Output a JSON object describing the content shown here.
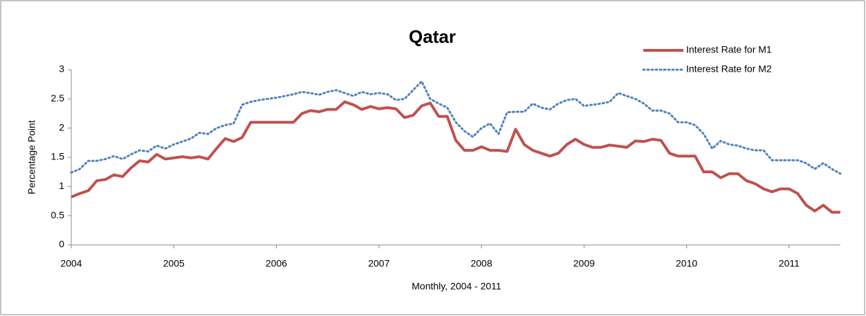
{
  "chart_data": {
    "type": "line",
    "title": "Qatar",
    "x_label": "Monthly, 2004 - 2011",
    "y_label": "Percentage Point",
    "categories": [
      "2004",
      null,
      null,
      null,
      null,
      null,
      null,
      null,
      null,
      null,
      null,
      null,
      "2005",
      null,
      null,
      null,
      null,
      null,
      null,
      null,
      null,
      null,
      null,
      null,
      "2006",
      null,
      null,
      null,
      null,
      null,
      null,
      null,
      null,
      null,
      null,
      null,
      "2007",
      null,
      null,
      null,
      null,
      null,
      null,
      null,
      null,
      null,
      null,
      null,
      "2008",
      null,
      null,
      null,
      null,
      null,
      null,
      null,
      null,
      null,
      null,
      null,
      "2009",
      null,
      null,
      null,
      null,
      null,
      null,
      null,
      null,
      null,
      null,
      null,
      "2010",
      null,
      null,
      null,
      null,
      null,
      null,
      null,
      null,
      null,
      null,
      null,
      "2011",
      null,
      null,
      null,
      null,
      null,
      null
    ],
    "series": [
      {
        "name": "Interest Rate for M1",
        "color": "#c0504d",
        "style": "solid",
        "values": [
          0.82,
          0.88,
          0.93,
          1.1,
          1.12,
          1.2,
          1.17,
          1.32,
          1.44,
          1.42,
          1.55,
          1.47,
          1.49,
          1.51,
          1.49,
          1.51,
          1.47,
          1.65,
          1.82,
          1.77,
          1.84,
          2.1,
          2.1,
          2.1,
          2.1,
          2.1,
          2.1,
          2.25,
          2.3,
          2.28,
          2.32,
          2.32,
          2.45,
          2.4,
          2.32,
          2.37,
          2.33,
          2.35,
          2.33,
          2.18,
          2.22,
          2.38,
          2.43,
          2.2,
          2.2,
          1.79,
          1.62,
          1.62,
          1.68,
          1.62,
          1.62,
          1.6,
          1.98,
          1.72,
          1.62,
          1.57,
          1.52,
          1.57,
          1.72,
          1.81,
          1.72,
          1.67,
          1.67,
          1.71,
          1.69,
          1.67,
          1.78,
          1.77,
          1.81,
          1.79,
          1.57,
          1.52,
          1.52,
          1.52,
          1.25,
          1.25,
          1.15,
          1.22,
          1.22,
          1.1,
          1.05,
          0.96,
          0.91,
          0.96,
          0.96,
          0.88,
          0.68,
          0.58,
          0.68,
          0.56,
          0.56
        ]
      },
      {
        "name": "Interest Rate for M2",
        "color": "#4f81bd",
        "style": "dotted",
        "values": [
          1.24,
          1.3,
          1.44,
          1.44,
          1.47,
          1.52,
          1.47,
          1.55,
          1.62,
          1.6,
          1.7,
          1.65,
          1.72,
          1.77,
          1.82,
          1.92,
          1.9,
          2.0,
          2.05,
          2.08,
          2.4,
          2.45,
          2.48,
          2.5,
          2.52,
          2.55,
          2.58,
          2.62,
          2.6,
          2.57,
          2.62,
          2.65,
          2.6,
          2.55,
          2.62,
          2.58,
          2.6,
          2.58,
          2.48,
          2.5,
          2.65,
          2.8,
          2.5,
          2.42,
          2.35,
          2.1,
          1.95,
          1.85,
          2.0,
          2.08,
          1.9,
          2.27,
          2.28,
          2.28,
          2.42,
          2.35,
          2.32,
          2.42,
          2.48,
          2.5,
          2.38,
          2.4,
          2.42,
          2.45,
          2.6,
          2.55,
          2.5,
          2.42,
          2.3,
          2.3,
          2.25,
          2.1,
          2.1,
          2.05,
          1.9,
          1.65,
          1.78,
          1.72,
          1.7,
          1.65,
          1.62,
          1.62,
          1.45,
          1.45,
          1.45,
          1.45,
          1.4,
          1.3,
          1.4,
          1.3,
          1.22
        ]
      }
    ],
    "ylim": [
      0,
      3
    ],
    "yticks": [
      0,
      0.5,
      1,
      1.5,
      2,
      2.5,
      3
    ],
    "grid": false,
    "legend": "upper right"
  }
}
